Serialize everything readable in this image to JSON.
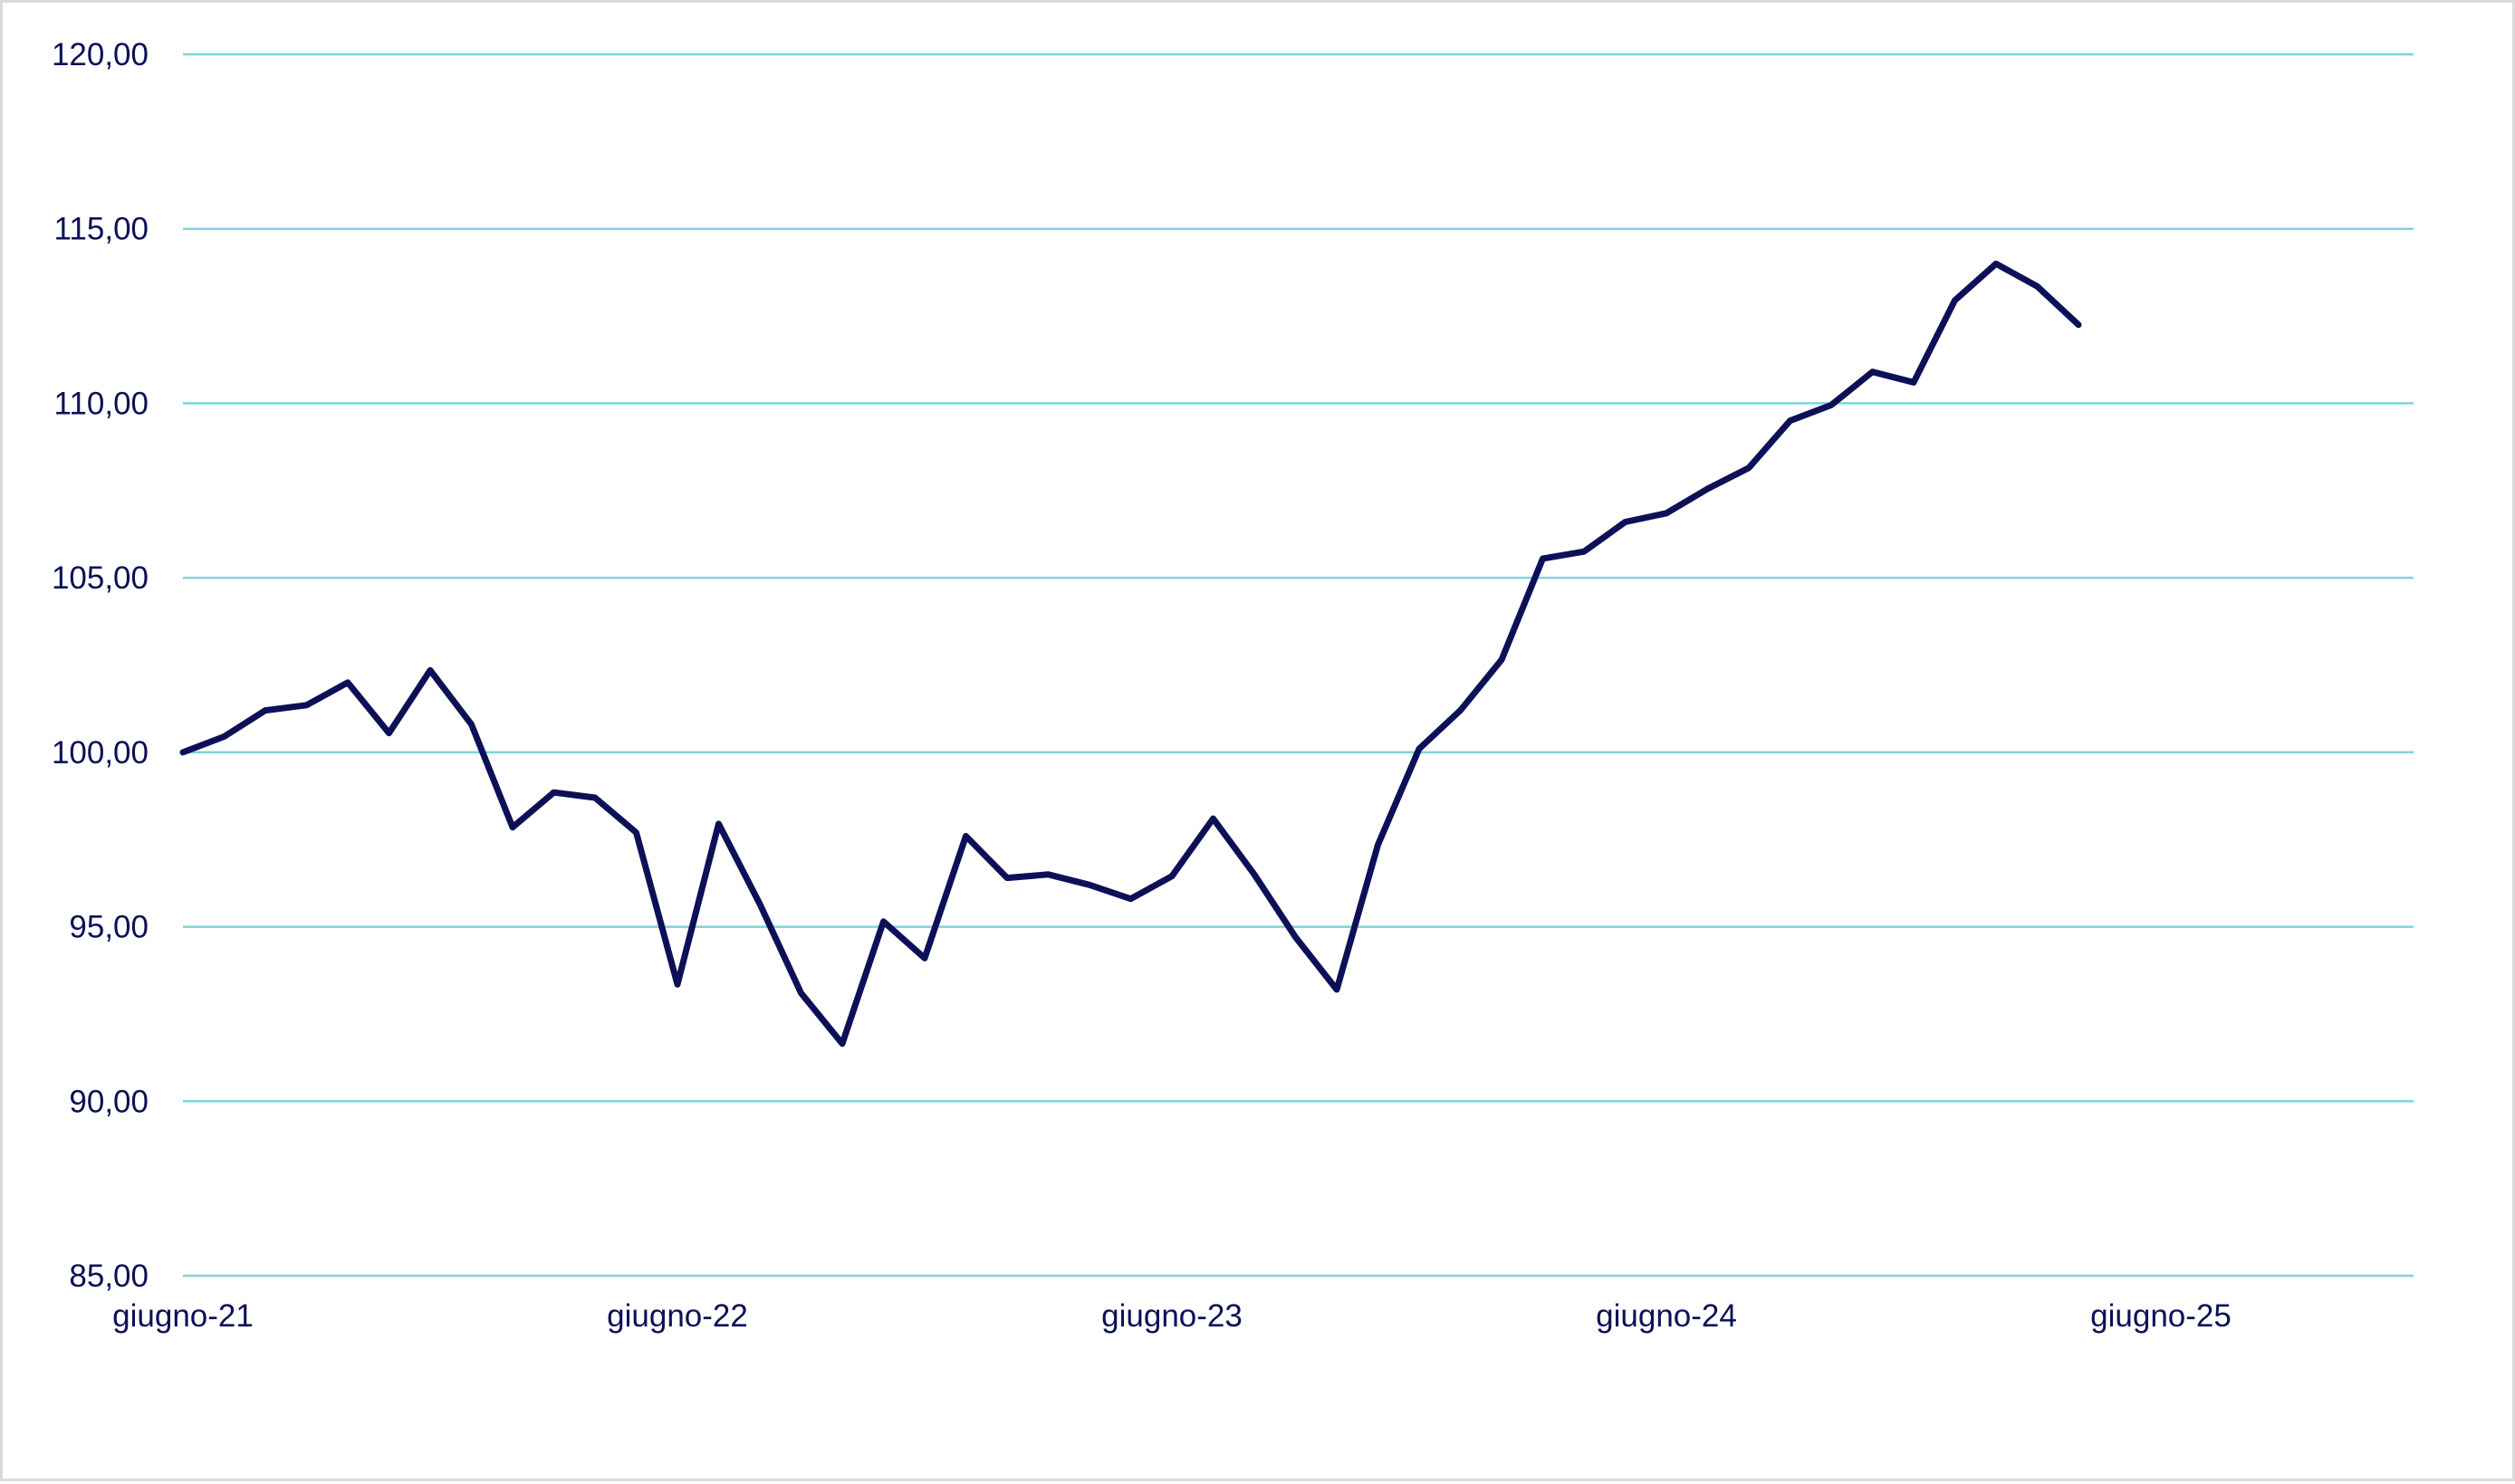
{
  "colors": {
    "line": "#0c1157",
    "grid": "#7fd3dc",
    "tick_text": "#0c1157",
    "frame": "#d9d9d9"
  },
  "chart_data": {
    "type": "line",
    "title": "",
    "xlabel": "",
    "ylabel": "",
    "grid": true,
    "legend": "none",
    "ylim": [
      85,
      120
    ],
    "y_ticks": [
      "85,00",
      "90,00",
      "95,00",
      "100,00",
      "105,00",
      "110,00",
      "115,00",
      "120,00"
    ],
    "y_tick_values": [
      85,
      90,
      95,
      100,
      105,
      110,
      115,
      120
    ],
    "x_ticks": [
      "giugno-21",
      "giugno-22",
      "giugno-23",
      "giugno-24",
      "giugno-25"
    ],
    "x_tick_indices": [
      0,
      12,
      24,
      36,
      48
    ],
    "x_index_range": [
      0,
      54
    ],
    "x": [
      "giu-21",
      "lug-21",
      "ago-21",
      "set-21",
      "ott-21",
      "nov-21",
      "dic-21",
      "gen-22",
      "feb-22",
      "mar-22",
      "apr-22",
      "mag-22",
      "giu-22",
      "lug-22",
      "ago-22",
      "set-22",
      "ott-22",
      "nov-22",
      "dic-22",
      "gen-23",
      "feb-23",
      "mar-23",
      "apr-23",
      "mag-23",
      "giu-23",
      "lug-23",
      "ago-23",
      "set-23",
      "ott-23",
      "nov-23",
      "dic-23",
      "gen-24",
      "feb-24",
      "mar-24",
      "apr-24",
      "mag-24",
      "giu-24",
      "lug-24",
      "ago-24",
      "set-24",
      "ott-24",
      "nov-24",
      "dic-24",
      "gen-25",
      "feb-25",
      "mar-25",
      "apr-25"
    ],
    "series": [
      {
        "values": [
          100.0,
          100.45,
          101.2,
          101.35,
          102.0,
          100.55,
          102.35,
          100.8,
          97.85,
          98.85,
          98.7,
          97.7,
          93.35,
          97.95,
          95.65,
          93.1,
          91.65,
          95.15,
          94.1,
          97.6,
          96.4,
          96.5,
          96.2,
          95.8,
          96.45,
          98.1,
          96.5,
          94.7,
          93.2,
          97.35,
          100.1,
          101.2,
          102.65,
          105.55,
          105.75,
          106.6,
          106.85,
          107.55,
          108.15,
          109.5,
          109.95,
          110.9,
          110.6,
          112.95,
          114.0,
          113.35,
          112.25
        ]
      }
    ]
  }
}
